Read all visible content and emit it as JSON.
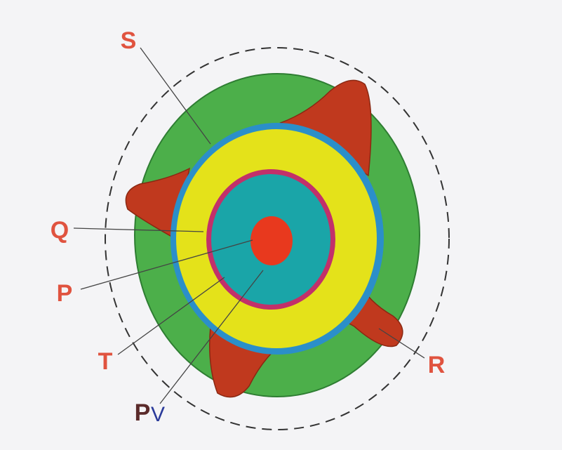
{
  "labels": [
    {
      "label": "S"
    },
    {
      "label": "Q"
    },
    {
      "label": "P"
    },
    {
      "label": "T"
    },
    {
      "label": "R"
    },
    {
      "label": "P"
    },
    {
      "label": "V"
    }
  ]
}
